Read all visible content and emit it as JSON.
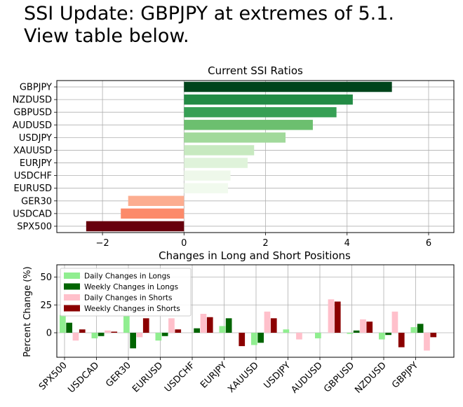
{
  "headline": {
    "line1": "SSI Update: GBPJPY at extremes of 5.1.",
    "line2": "View table below."
  },
  "chart_data": [
    {
      "type": "bar",
      "orientation": "horizontal",
      "title": "Current SSI Ratios",
      "categories": [
        "GBPJPY",
        "NZDUSD",
        "GBPUSD",
        "AUDUSD",
        "USDJPY",
        "XAUUSD",
        "EURJPY",
        "USDCHF",
        "EURUSD",
        "GER30",
        "USDCAD",
        "SPX500"
      ],
      "values": [
        5.1,
        4.14,
        3.74,
        3.16,
        2.49,
        1.72,
        1.56,
        1.14,
        1.08,
        -1.37,
        -1.55,
        -2.4
      ],
      "colors": [
        "#00441b",
        "#238b45",
        "#37a055",
        "#6cbf6f",
        "#a1d99b",
        "#c7e9c0",
        "#dff3da",
        "#eef8ea",
        "#f1faee",
        "#fcad90",
        "#fc8a6a",
        "#67000d"
      ],
      "xlim": [
        -3.12,
        6.62
      ],
      "xticks": [
        -2,
        0,
        2,
        4,
        6
      ],
      "xtick_labels": [
        "−2",
        "0",
        "2",
        "4",
        "6"
      ],
      "grid": true
    },
    {
      "type": "bar",
      "title": "Changes in Long and Short Positions",
      "ylabel": "Percent Change (%)",
      "categories": [
        "SPX500",
        "USDCAD",
        "GER30",
        "EURUSD",
        "USDCHF",
        "EURJPY",
        "XAUUSD",
        "USDJPY",
        "AUDUSD",
        "GBPUSD",
        "NZDUSD",
        "GBPJPY"
      ],
      "series": [
        {
          "name": "Daily Changes in Longs",
          "color": "#90ee90",
          "values": [
            16,
            -5,
            15,
            -7,
            0,
            6,
            -11,
            3,
            -5,
            -1,
            -6,
            5
          ]
        },
        {
          "name": "Weekly Changes in Longs",
          "color": "#006400",
          "values": [
            9,
            -3,
            -14,
            -3,
            4,
            13,
            -9,
            0,
            0,
            2,
            -2,
            8
          ]
        },
        {
          "name": "Daily Changes in Shorts",
          "color": "#ffc0cb",
          "values": [
            -7,
            2,
            -4,
            13,
            17,
            0,
            19,
            -6,
            30,
            12,
            19,
            -16
          ]
        },
        {
          "name": "Weekly Changes in Shorts",
          "color": "#8b0000",
          "values": [
            3,
            1,
            13,
            3,
            14,
            -12,
            13,
            0,
            28,
            10,
            -13,
            -4
          ]
        }
      ],
      "ylim": [
        -22,
        61
      ],
      "yticks": [
        0,
        25,
        50
      ],
      "legend": "top-left",
      "grid": true
    }
  ]
}
